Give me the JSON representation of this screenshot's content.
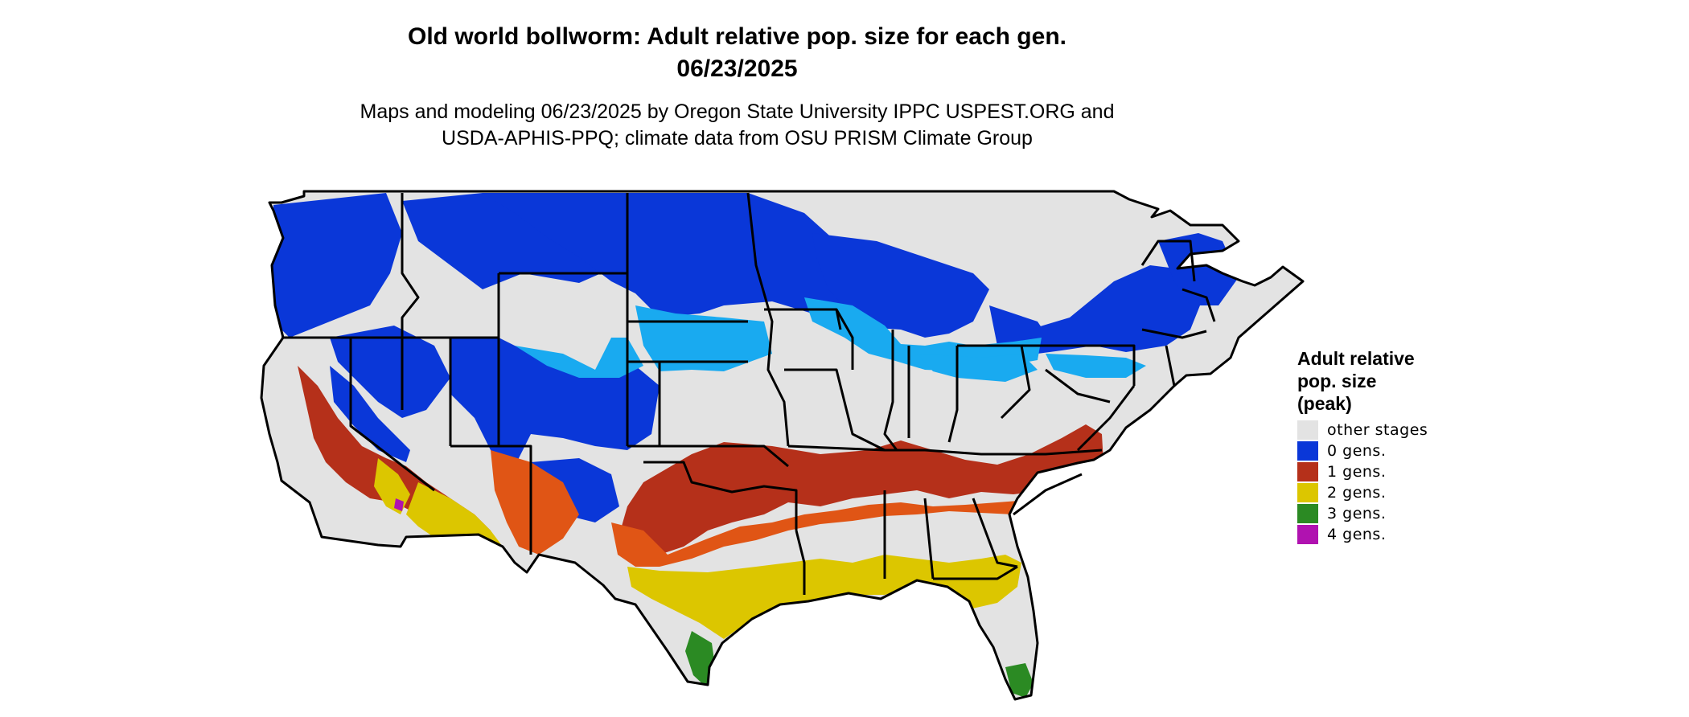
{
  "title_line1": "Old world bollworm: Adult relative pop. size for each gen.",
  "title_line2": "06/23/2025",
  "subtitle_line1": "Maps and modeling 06/23/2025 by Oregon State University IPPC USPEST.ORG and",
  "subtitle_line2": "USDA-APHIS-PPQ; climate data from OSU PRISM Climate Group",
  "legend": {
    "title_line1": "Adult relative",
    "title_line2": "pop. size",
    "title_line3": "(peak)",
    "items": [
      {
        "label": "other stages",
        "color": "#e3e3e3"
      },
      {
        "label": "0 gens.",
        "color": "#0a37d8"
      },
      {
        "label": "1 gens.",
        "color": "#b5301a"
      },
      {
        "label": "2 gens.",
        "color": "#dcc600"
      },
      {
        "label": "3 gens.",
        "color": "#2b8a23"
      },
      {
        "label": "4 gens.",
        "color": "#b012b0"
      }
    ]
  },
  "colors": {
    "light_blue": "#19aaf0",
    "orange_red": "#e05515",
    "state_border": "#000000"
  }
}
